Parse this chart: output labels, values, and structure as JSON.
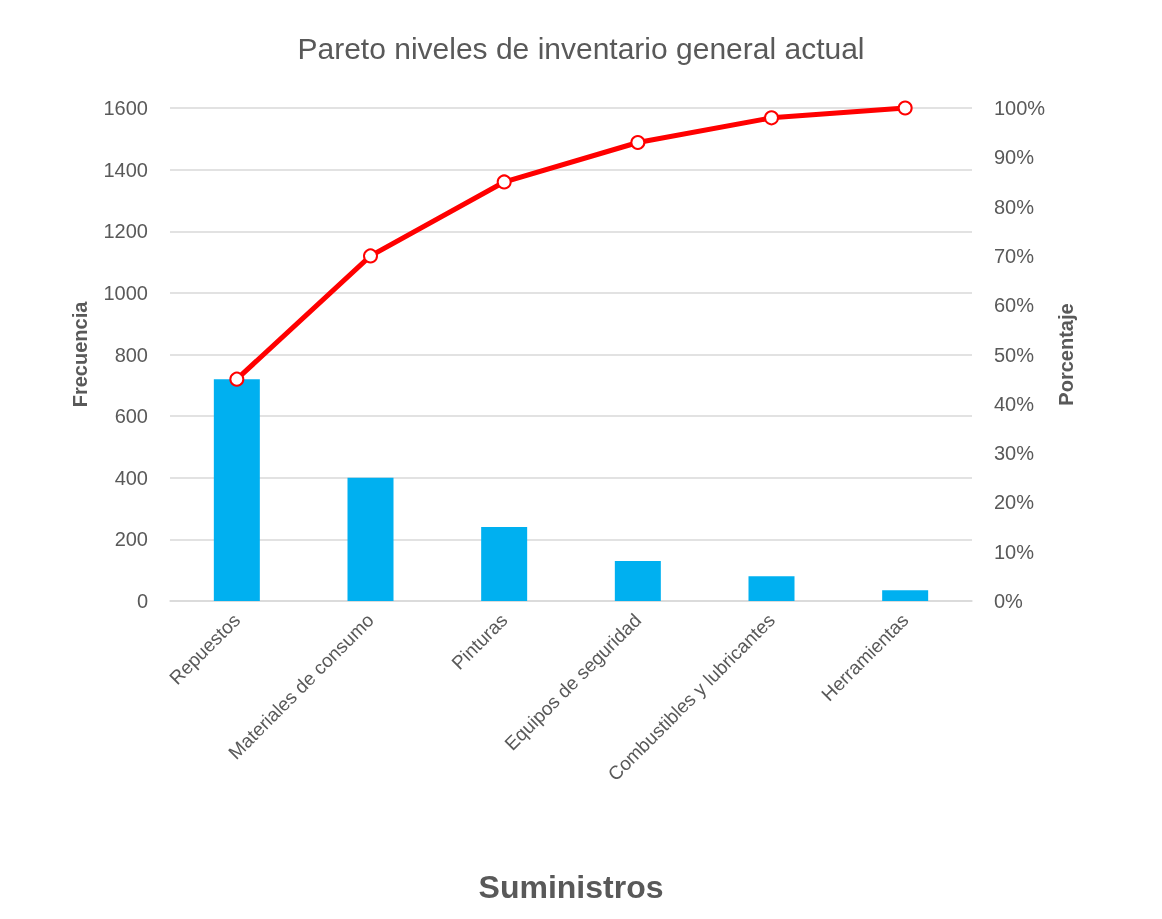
{
  "chart_data": {
    "type": "bar",
    "title": "Pareto niveles de inventario general actual",
    "xlabel": "Suministros",
    "ylabel": "Frecuencia",
    "y2label": "Porcentaje",
    "categories": [
      "Repuestos",
      "Materiales de consumo",
      "Pinturas",
      "Equipos de seguridad",
      "Combustibles y lubricantes",
      "Herramientas"
    ],
    "series": [
      {
        "color": "#00b0f0",
        "values": [
          720,
          400,
          240,
          130,
          80,
          35
        ]
      },
      {
        "type": "line",
        "axis": "y2",
        "color": "#ff0000",
        "marker": "circle",
        "values": [
          45,
          70,
          85,
          93,
          98,
          100
        ]
      }
    ],
    "ylim": [
      0,
      1600
    ],
    "yticks": [
      0,
      200,
      400,
      600,
      800,
      1000,
      1200,
      1400,
      1600
    ],
    "y2lim": [
      0,
      100
    ],
    "y2ticks": [
      {
        "value": 0,
        "label": "0%"
      },
      {
        "value": 10,
        "label": "10%"
      },
      {
        "value": 20,
        "label": "20%"
      },
      {
        "value": 30,
        "label": "30%"
      },
      {
        "value": 40,
        "label": "40%"
      },
      {
        "value": 50,
        "label": "50%"
      },
      {
        "value": 60,
        "label": "60%"
      },
      {
        "value": 70,
        "label": "70%"
      },
      {
        "value": 80,
        "label": "80%"
      },
      {
        "value": 90,
        "label": "90%"
      },
      {
        "value": 100,
        "label": "100%"
      }
    ],
    "grid": "y"
  }
}
